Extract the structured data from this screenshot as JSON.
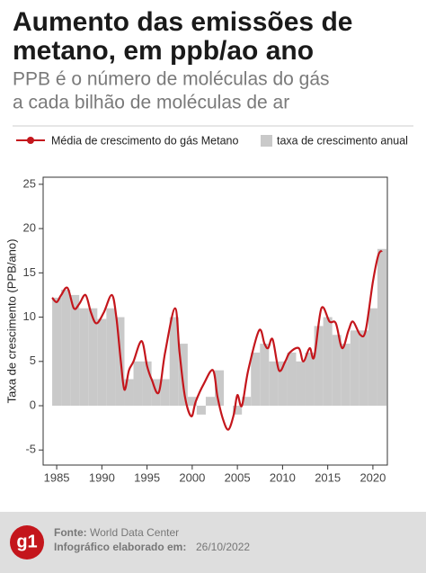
{
  "chart_data": {
    "type": "bar_line",
    "title": [
      "Aumento das emissões de",
      "metano, em ppb/ao ano"
    ],
    "subtitle": [
      "PPB é o número de moléculas do gás",
      "a cada bilhão de moléculas de ar"
    ],
    "y_label": "Taxa de crescimento (PPB/ano)",
    "xlim": [
      1983.5,
      2021.6
    ],
    "ylim": [
      -6.7,
      25.8
    ],
    "xticks": [
      1985,
      1990,
      1995,
      2000,
      2005,
      2010,
      2015,
      2020
    ],
    "yticks": [
      -5,
      0,
      5,
      10,
      15,
      20,
      25
    ],
    "bars": {
      "name": "taxa de crescimento anual",
      "color": "#c9c9c9",
      "x": [
        1985,
        1986,
        1987,
        1988,
        1989,
        1990,
        1991,
        1992,
        1993,
        1994,
        1995,
        1996,
        1997,
        1998,
        1999,
        2000,
        2001,
        2002,
        2003,
        2004,
        2005,
        2006,
        2007,
        2008,
        2009,
        2010,
        2011,
        2012,
        2013,
        2014,
        2015,
        2016,
        2017,
        2018,
        2019,
        2020,
        2021
      ],
      "values": [
        12.2,
        13.1,
        12.5,
        11,
        11,
        9.8,
        11,
        10,
        3,
        5,
        5,
        3,
        3,
        10,
        7,
        1,
        -1,
        1,
        4,
        0,
        -1,
        1,
        6,
        7,
        5,
        5,
        6,
        5,
        6,
        9,
        10,
        8,
        7,
        8.5,
        8.5,
        11,
        17.7
      ]
    },
    "line": {
      "name": "Média de crescimento do gás Metano",
      "color": "#c4161c",
      "x": [
        1984.5,
        1985.0,
        1985.5,
        1986.2,
        1986.9,
        1987.5,
        1988.2,
        1988.8,
        1989.4,
        1990.2,
        1991.1,
        1991.6,
        1992.1,
        1992.5,
        1993.0,
        1993.5,
        1994.4,
        1995.0,
        1995.5,
        1996.3,
        1997.0,
        1998.1,
        1998.6,
        1999.2,
        1999.9,
        2000.4,
        2001.3,
        2002.3,
        2002.8,
        2003.4,
        2004.0,
        2004.6,
        2005.0,
        2005.5,
        2006.2,
        2007.4,
        2008.0,
        2008.4,
        2008.9,
        2009.6,
        2010.3,
        2010.8,
        2011.8,
        2012.3,
        2013.0,
        2013.5,
        2014.3,
        2015.2,
        2015.9,
        2016.6,
        2017.3,
        2017.8,
        2018.6,
        2019.2,
        2020.0,
        2020.6,
        2021.0
      ],
      "values": [
        12.2,
        11.7,
        12.5,
        13.3,
        11.0,
        11.5,
        12.5,
        10.5,
        9.3,
        10.5,
        12.5,
        10.0,
        5.0,
        1.8,
        4.0,
        5.0,
        7.3,
        4.5,
        3.0,
        1.5,
        6.0,
        11.0,
        6.0,
        1.0,
        -1.2,
        0.5,
        2.5,
        4.0,
        1.0,
        -1.5,
        -2.7,
        -1.0,
        1.2,
        0.0,
        4.0,
        8.5,
        7.0,
        6.5,
        7.5,
        4.0,
        5.0,
        6.0,
        6.5,
        5.0,
        6.5,
        5.5,
        11.0,
        9.5,
        9.3,
        6.5,
        8.5,
        9.5,
        8.0,
        8.5,
        14.0,
        17.0,
        17.5
      ]
    }
  },
  "footer": {
    "logo": "g1",
    "source_label": "Fonte:",
    "source": "World Data Center",
    "credit_label": "Infográfico elaborado em:",
    "credit": "26/10/2022"
  }
}
